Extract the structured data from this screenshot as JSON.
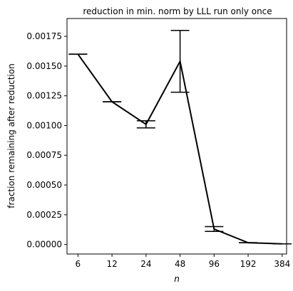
{
  "chart_data": {
    "type": "line",
    "title": "reduction in min. norm by LLL run only once",
    "xlabel": "n",
    "ylabel": "fraction remaining after reduction",
    "x_scale": "log2",
    "x": [
      6,
      12,
      24,
      48,
      96,
      192,
      384
    ],
    "x_ticks": [
      "6",
      "12",
      "24",
      "48",
      "96",
      "192",
      "384"
    ],
    "xlim": [
      4.8,
      420
    ],
    "ylim": [
      -8e-05,
      0.0019
    ],
    "y_ticks": [
      "0.00000",
      "0.00025",
      "0.00050",
      "0.00075",
      "0.00100",
      "0.00125",
      "0.00150",
      "0.00175"
    ],
    "y_tick_values": [
      0,
      0.00025,
      0.0005,
      0.00075,
      0.001,
      0.00125,
      0.0015,
      0.00175
    ],
    "grid": false,
    "legend": "none",
    "series": [
      {
        "color": "#000000",
        "values": [
          0.0016,
          0.0012,
          0.00101,
          0.00154,
          0.00013,
          1.5e-05,
          5e-06
        ],
        "err_low": [
          0.0016,
          0.0012,
          0.00098,
          0.00128,
          0.00011,
          1.5e-05,
          5e-06
        ],
        "err_high": [
          0.0016,
          0.0012,
          0.00104,
          0.0018,
          0.00015,
          1.5e-05,
          5e-06
        ]
      }
    ]
  }
}
